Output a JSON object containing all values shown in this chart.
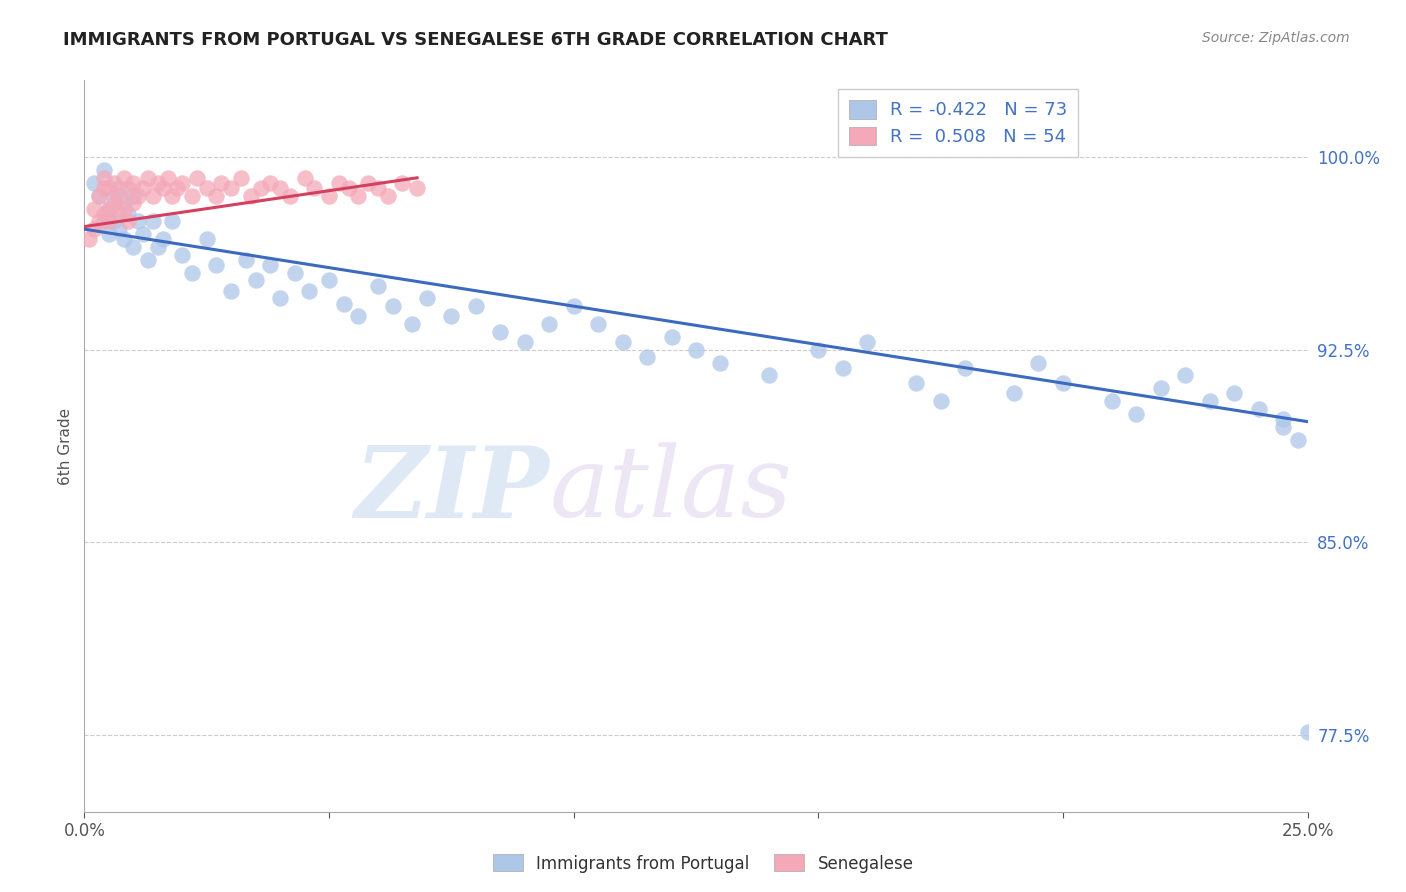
{
  "title": "IMMIGRANTS FROM PORTUGAL VS SENEGALESE 6TH GRADE CORRELATION CHART",
  "source": "Source: ZipAtlas.com",
  "xlabel_legend1": "Immigrants from Portugal",
  "xlabel_legend2": "Senegalese",
  "ylabel": "6th Grade",
  "R1": -0.422,
  "N1": 73,
  "R2": 0.508,
  "N2": 54,
  "xlim": [
    0.0,
    0.25
  ],
  "ylim": [
    0.745,
    1.03
  ],
  "yticks": [
    0.775,
    0.85,
    0.925,
    1.0
  ],
  "ytick_labels": [
    "77.5%",
    "85.0%",
    "92.5%",
    "100.0%"
  ],
  "xticks": [
    0.0,
    0.05,
    0.1,
    0.15,
    0.2,
    0.25
  ],
  "xtick_labels_shown": [
    "0.0%",
    "25.0%"
  ],
  "blue_color": "#aec6e8",
  "pink_color": "#f4a8b8",
  "blue_line_color": "#3b6abf",
  "pink_line_color": "#d44060",
  "tick_color": "#4472c4",
  "background": "#ffffff",
  "watermark_zip": "ZIP",
  "watermark_atlas": "atlas",
  "blue_x": [
    0.002,
    0.003,
    0.004,
    0.004,
    0.005,
    0.005,
    0.006,
    0.006,
    0.007,
    0.007,
    0.008,
    0.008,
    0.009,
    0.01,
    0.01,
    0.011,
    0.012,
    0.013,
    0.014,
    0.015,
    0.016,
    0.018,
    0.02,
    0.022,
    0.025,
    0.027,
    0.03,
    0.033,
    0.035,
    0.038,
    0.04,
    0.043,
    0.046,
    0.05,
    0.053,
    0.056,
    0.06,
    0.063,
    0.067,
    0.07,
    0.075,
    0.08,
    0.085,
    0.09,
    0.095,
    0.1,
    0.105,
    0.11,
    0.115,
    0.12,
    0.125,
    0.13,
    0.14,
    0.15,
    0.155,
    0.16,
    0.17,
    0.175,
    0.18,
    0.19,
    0.195,
    0.2,
    0.21,
    0.215,
    0.22,
    0.225,
    0.23,
    0.235,
    0.24,
    0.245,
    0.245,
    0.248,
    0.25
  ],
  "blue_y": [
    0.99,
    0.985,
    0.975,
    0.995,
    0.98,
    0.97,
    0.985,
    0.975,
    0.988,
    0.972,
    0.982,
    0.968,
    0.978,
    0.985,
    0.965,
    0.975,
    0.97,
    0.96,
    0.975,
    0.965,
    0.968,
    0.975,
    0.962,
    0.955,
    0.968,
    0.958,
    0.948,
    0.96,
    0.952,
    0.958,
    0.945,
    0.955,
    0.948,
    0.952,
    0.943,
    0.938,
    0.95,
    0.942,
    0.935,
    0.945,
    0.938,
    0.942,
    0.932,
    0.928,
    0.935,
    0.942,
    0.935,
    0.928,
    0.922,
    0.93,
    0.925,
    0.92,
    0.915,
    0.925,
    0.918,
    0.928,
    0.912,
    0.905,
    0.918,
    0.908,
    0.92,
    0.912,
    0.905,
    0.9,
    0.91,
    0.915,
    0.905,
    0.908,
    0.902,
    0.895,
    0.898,
    0.89,
    0.776
  ],
  "pink_x": [
    0.001,
    0.002,
    0.002,
    0.003,
    0.003,
    0.004,
    0.004,
    0.004,
    0.005,
    0.005,
    0.005,
    0.006,
    0.006,
    0.007,
    0.007,
    0.008,
    0.008,
    0.009,
    0.009,
    0.01,
    0.01,
    0.011,
    0.012,
    0.013,
    0.014,
    0.015,
    0.016,
    0.017,
    0.018,
    0.019,
    0.02,
    0.022,
    0.023,
    0.025,
    0.027,
    0.028,
    0.03,
    0.032,
    0.034,
    0.036,
    0.038,
    0.04,
    0.042,
    0.045,
    0.047,
    0.05,
    0.052,
    0.054,
    0.056,
    0.058,
    0.06,
    0.062,
    0.065,
    0.068
  ],
  "pink_y": [
    0.968,
    0.972,
    0.98,
    0.975,
    0.985,
    0.988,
    0.978,
    0.992,
    0.98,
    0.988,
    0.975,
    0.982,
    0.99,
    0.985,
    0.978,
    0.992,
    0.98,
    0.988,
    0.975,
    0.982,
    0.99,
    0.985,
    0.988,
    0.992,
    0.985,
    0.99,
    0.988,
    0.992,
    0.985,
    0.988,
    0.99,
    0.985,
    0.992,
    0.988,
    0.985,
    0.99,
    0.988,
    0.992,
    0.985,
    0.988,
    0.99,
    0.988,
    0.985,
    0.992,
    0.988,
    0.985,
    0.99,
    0.988,
    0.985,
    0.99,
    0.988,
    0.985,
    0.99,
    0.988
  ],
  "blue_line_x0": 0.0,
  "blue_line_y0": 0.972,
  "blue_line_x1": 0.25,
  "blue_line_y1": 0.897,
  "pink_line_x0": 0.0,
  "pink_line_y0": 0.973,
  "pink_line_x1": 0.068,
  "pink_line_y1": 0.992
}
